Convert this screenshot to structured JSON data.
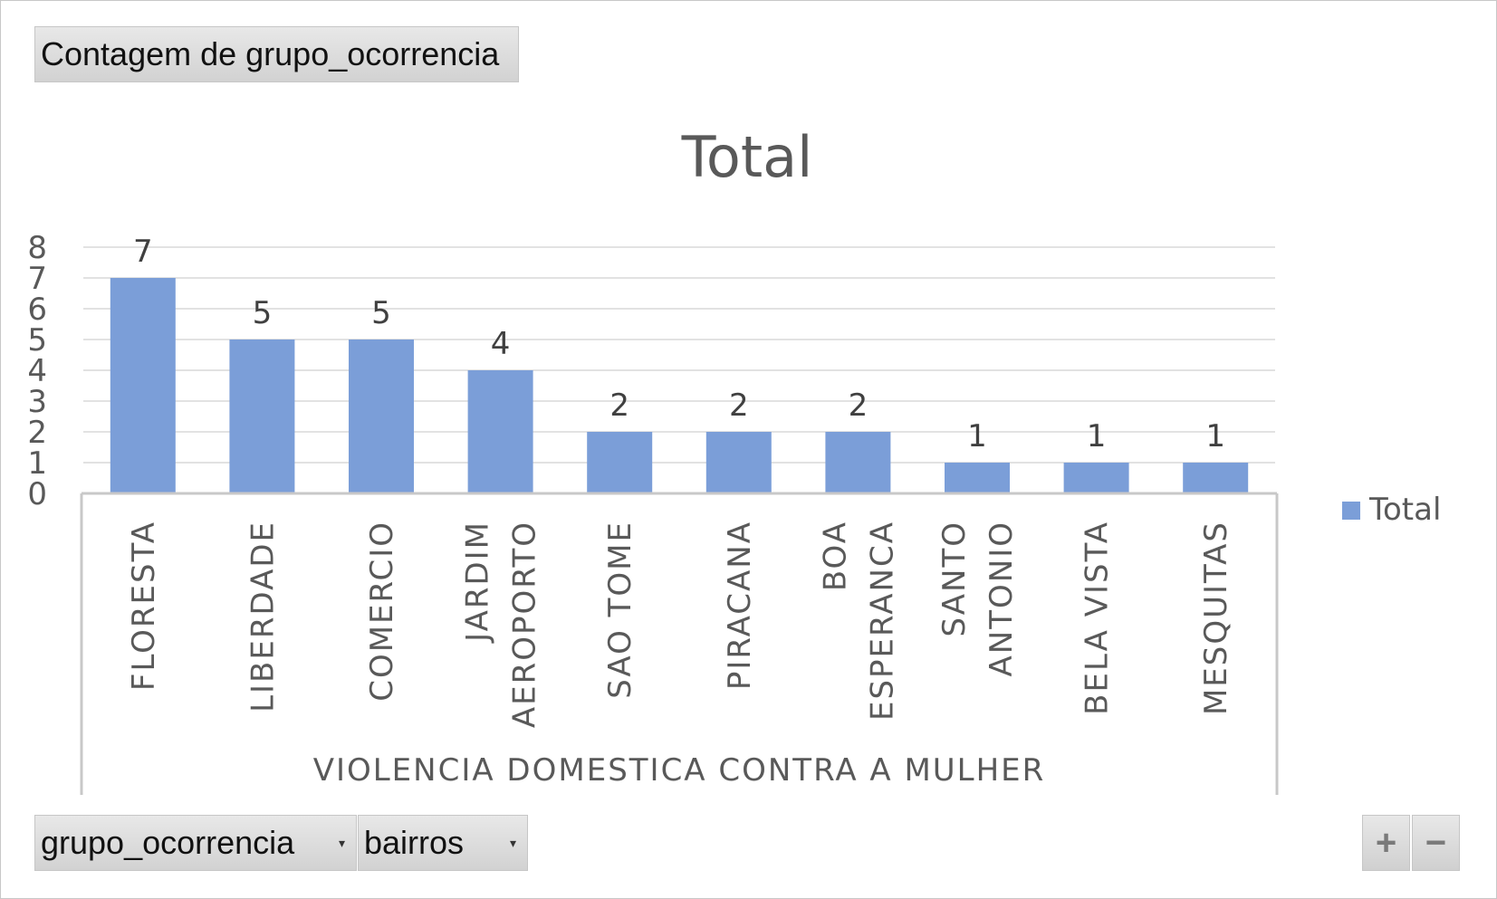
{
  "pivot": {
    "value_field": "Contagem de grupo_ocorrencia",
    "axis_fields": [
      "grupo_ocorrencia",
      "bairros"
    ],
    "zoom_in_label": "+",
    "zoom_out_label": "−"
  },
  "chart_data": {
    "type": "bar",
    "title": "Total",
    "categories": [
      "FLORESTA",
      "LIBERDADE",
      "COMERCIO",
      "JARDIM AEROPORTO",
      "SAO TOME",
      "PIRACANA",
      "BOA ESPERANCA",
      "SANTO ANTONIO",
      "BELA VISTA",
      "MESQUITAS"
    ],
    "category_label_lines": [
      [
        "FLORESTA"
      ],
      [
        "LIBERDADE"
      ],
      [
        "COMERCIO"
      ],
      [
        "JARDIM",
        "AEROPORTO"
      ],
      [
        "SAO TOME"
      ],
      [
        "PIRACANA"
      ],
      [
        "BOA",
        "ESPERANCA"
      ],
      [
        "SANTO",
        "ANTONIO"
      ],
      [
        "BELA VISTA"
      ],
      [
        "MESQUITAS"
      ]
    ],
    "group_label": "VIOLENCIA DOMESTICA CONTRA A MULHER",
    "series": [
      {
        "name": "Total",
        "values": [
          7,
          5,
          5,
          4,
          2,
          2,
          2,
          1,
          1,
          1
        ],
        "color": "#7b9ed8"
      }
    ],
    "ylim": [
      0,
      8
    ],
    "yticks": [
      0,
      1,
      2,
      3,
      4,
      5,
      6,
      7,
      8
    ],
    "data_labels": true,
    "grid": true,
    "legend": "right"
  }
}
